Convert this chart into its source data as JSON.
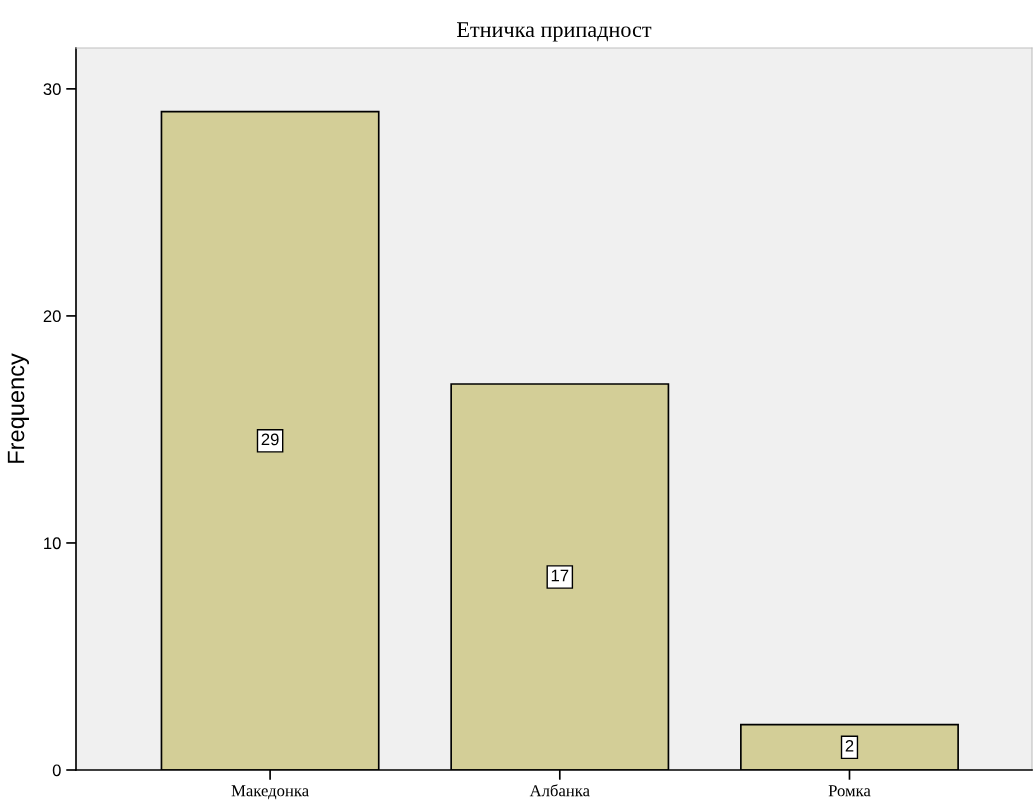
{
  "chart_data": {
    "type": "bar",
    "title": "Етничка припадност",
    "ylabel": "Frequency",
    "categories": [
      "Македонка",
      "Албанка",
      "Ромка"
    ],
    "values": [
      29,
      17,
      2
    ],
    "color": "#d3ce97",
    "ylim": [
      0,
      31.8
    ],
    "yticks": [
      0,
      10,
      20,
      30
    ],
    "grid": false,
    "data_labels": true
  }
}
